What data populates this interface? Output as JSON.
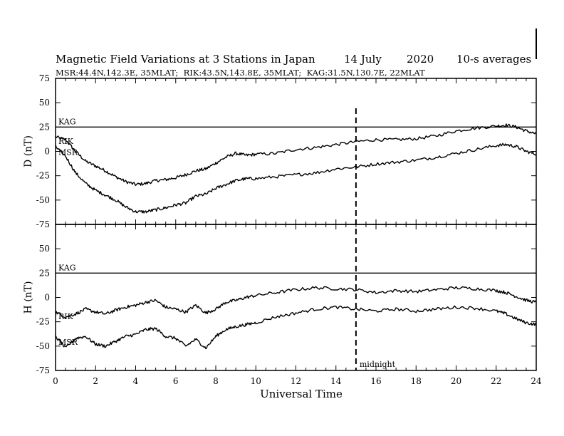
{
  "chart_data": {
    "type": "line",
    "title": "Magnetic Field Variations at 3 Stations in Japan",
    "date": "14 July",
    "year": "2020",
    "averaging": "10-s averages",
    "subtitle": "MSR:44.4N,142.3E, 35MLAT;  RIK:43.5N,143.8E, 35MLAT;  KAG:31.5N,130.7E, 22MLAT",
    "xlabel": "Universal Time",
    "xlim": [
      0,
      24
    ],
    "xticks": [
      "0",
      "2",
      "4",
      "6",
      "8",
      "10",
      "12",
      "14",
      "16",
      "18",
      "20",
      "22",
      "24"
    ],
    "annotations": {
      "midnight": {
        "x": 15,
        "label": "midnight"
      }
    },
    "panels": [
      {
        "ylabel": "D (nT)",
        "ylim": [
          -75,
          75
        ],
        "yticks": [
          "75",
          "50",
          "25",
          "0",
          "-25",
          "-50",
          "-75"
        ],
        "series": [
          {
            "name": "KAG",
            "x": [
              0,
              24
            ],
            "values": [
              25,
              25
            ]
          },
          {
            "name": "RIK",
            "x": [
              0,
              0.5,
              1,
              1.5,
              2,
              2.5,
              3,
              3.5,
              4,
              4.5,
              5,
              5.5,
              6,
              6.5,
              7,
              7.5,
              8,
              8.5,
              9,
              9.5,
              10,
              11,
              12,
              13,
              14,
              15,
              16,
              17,
              18,
              19,
              20,
              21,
              22,
              22.5,
              23,
              23.5,
              24
            ],
            "values": [
              15,
              12,
              0,
              -10,
              -15,
              -20,
              -26,
              -31,
              -34,
              -33,
              -30,
              -29,
              -27,
              -24,
              -20,
              -18,
              -12,
              -6,
              -2,
              -4,
              -3,
              -2,
              2,
              4,
              7,
              10,
              12,
              12,
              13,
              16,
              21,
              24,
              26,
              27,
              25,
              21,
              18
            ]
          },
          {
            "name": "MSR",
            "x": [
              0,
              0.5,
              1,
              1.5,
              2,
              2.5,
              3,
              3.5,
              4,
              4.5,
              5,
              5.5,
              6,
              6.5,
              7,
              7.5,
              8,
              8.5,
              9,
              9.5,
              10,
              11,
              12,
              13,
              14,
              15,
              16,
              17,
              18,
              19,
              20,
              21,
              22,
              22.5,
              23,
              23.5,
              24
            ],
            "values": [
              5,
              -5,
              -22,
              -33,
              -40,
              -45,
              -50,
              -57,
              -62,
              -62,
              -60,
              -58,
              -55,
              -53,
              -46,
              -44,
              -38,
              -34,
              -30,
              -28,
              -28,
              -26,
              -24,
              -22,
              -18,
              -16,
              -13,
              -11,
              -9,
              -6,
              -2,
              2,
              6,
              7,
              5,
              0,
              -3
            ]
          }
        ]
      },
      {
        "ylabel": "H (nT)",
        "ylim": [
          -75,
          75
        ],
        "yticks": [
          "75",
          "50",
          "25",
          "0",
          "-25",
          "-50",
          "-75"
        ],
        "series": [
          {
            "name": "KAG",
            "x": [
              0,
              24
            ],
            "values": [
              25,
              25
            ]
          },
          {
            "name": "RIK",
            "x": [
              0,
              0.5,
              1,
              1.5,
              2,
              2.5,
              3,
              3.5,
              4,
              4.5,
              5,
              5.5,
              6,
              6.5,
              7,
              7.5,
              8,
              8.5,
              9,
              9.5,
              10,
              11,
              12,
              13,
              14,
              15,
              16,
              17,
              18,
              19,
              20,
              21,
              22,
              22.5,
              23,
              23.5,
              24
            ],
            "values": [
              -15,
              -20,
              -17,
              -12,
              -15,
              -17,
              -13,
              -10,
              -8,
              -5,
              -3,
              -10,
              -12,
              -15,
              -8,
              -16,
              -12,
              -5,
              -3,
              0,
              2,
              5,
              8,
              10,
              9,
              8,
              5,
              7,
              6,
              8,
              10,
              9,
              7,
              5,
              1,
              -3,
              -5
            ]
          },
          {
            "name": "MSR",
            "x": [
              0,
              0.5,
              1,
              1.5,
              2,
              2.5,
              3,
              3.5,
              4,
              4.5,
              5,
              5.5,
              6,
              6.5,
              7,
              7.5,
              8,
              8.5,
              9,
              9.5,
              10,
              11,
              12,
              13,
              14,
              15,
              16,
              17,
              18,
              19,
              20,
              21,
              22,
              22.5,
              23,
              23.5,
              24
            ],
            "values": [
              -40,
              -52,
              -42,
              -40,
              -48,
              -50,
              -45,
              -40,
              -38,
              -33,
              -32,
              -40,
              -42,
              -50,
              -43,
              -52,
              -40,
              -33,
              -30,
              -28,
              -26,
              -20,
              -16,
              -12,
              -10,
              -12,
              -14,
              -12,
              -14,
              -12,
              -10,
              -11,
              -14,
              -17,
              -22,
              -26,
              -28
            ]
          }
        ]
      }
    ]
  }
}
